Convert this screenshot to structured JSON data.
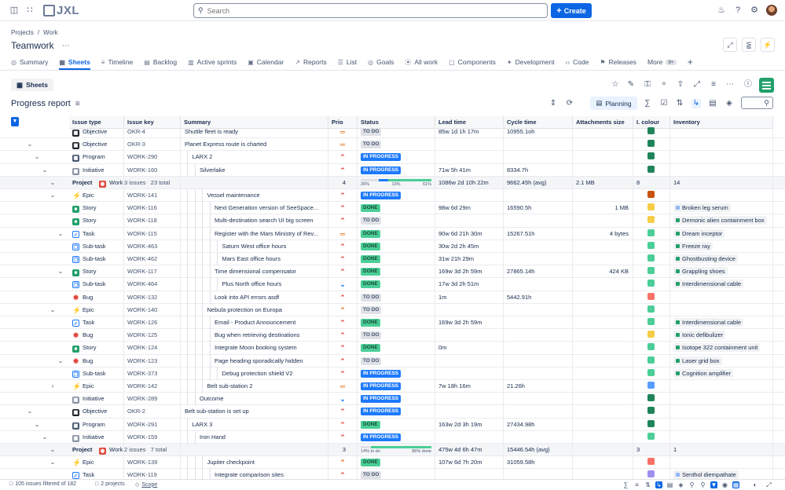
{
  "topbar": {
    "logo_text": "JXL",
    "search_placeholder": "Search",
    "create_label": "Create"
  },
  "breadcrumb": {
    "projects": "Projects",
    "sep": "/",
    "work": "Work"
  },
  "project_title": "Teamwork",
  "tabs": [
    {
      "label": "Summary",
      "icon": "globe-icon"
    },
    {
      "label": "Sheets",
      "icon": "sheet-icon"
    },
    {
      "label": "Timeline",
      "icon": "timeline-icon"
    },
    {
      "label": "Backlog",
      "icon": "backlog-icon"
    },
    {
      "label": "Active sprints",
      "icon": "sprint-icon"
    },
    {
      "label": "Calendar",
      "icon": "calendar-icon"
    },
    {
      "label": "Reports",
      "icon": "chart-icon"
    },
    {
      "label": "List",
      "icon": "list-icon"
    },
    {
      "label": "Goals",
      "icon": "goal-icon"
    },
    {
      "label": "All work",
      "icon": "allwork-icon"
    },
    {
      "label": "Components",
      "icon": "component-icon"
    },
    {
      "label": "Development",
      "icon": "bulb-icon"
    },
    {
      "label": "Code",
      "icon": "code-icon"
    },
    {
      "label": "Releases",
      "icon": "release-icon"
    },
    {
      "label": "More",
      "icon": "more-icon",
      "badge": "9+"
    }
  ],
  "sheets_label": "Sheets",
  "report_title": "Progress report",
  "planning_label": "Planning",
  "columns": [
    "Issue type",
    "Issue key",
    "Summary",
    "Prio",
    "Status",
    "Lead time",
    "Cycle time",
    "Attachments size",
    "I. colour",
    "Inventory"
  ],
  "rows": [
    {
      "kind": "issue",
      "gutter": "",
      "type": "Objective",
      "icon": "objective",
      "key": "OKR-4",
      "summary": "Shuttle fleet is ready",
      "indent": 0,
      "prio": "med",
      "status": "TO DO",
      "st": "todo",
      "lead": "85w 1d 1h 17m",
      "cycle": "10955.1oh",
      "att": "",
      "colour": "#1f845a",
      "inv": ""
    },
    {
      "kind": "issue",
      "gutter": "⌄",
      "type": "Objective",
      "icon": "objective",
      "key": "OKR-3",
      "summary": "Planet Express route is charted",
      "indent": 0,
      "prio": "med",
      "status": "TO DO",
      "st": "todo",
      "lead": "",
      "cycle": "",
      "att": "",
      "colour": "#1f845a",
      "inv": ""
    },
    {
      "kind": "issue",
      "gutter": "⌄",
      "type": "Program",
      "icon": "program",
      "key": "WORK-290",
      "summary": "LARX 2",
      "indent": 1,
      "prio": "high",
      "status": "IN PROGRESS",
      "st": "prog",
      "lead": "",
      "cycle": "",
      "att": "",
      "colour": "#1f845a",
      "inv": ""
    },
    {
      "kind": "issue",
      "gutter": "⌄",
      "type": "Initiative",
      "icon": "initiative",
      "key": "WORK-160",
      "summary": "Silverlake",
      "indent": 2,
      "prio": "high",
      "status": "IN PROGRESS",
      "st": "prog",
      "lead": "71w 5h 41m",
      "cycle": "8334.7h",
      "att": "",
      "colour": "#1f845a",
      "inv": ""
    },
    {
      "kind": "project",
      "gutter": "⌄",
      "label": "Project",
      "pname": "Work",
      "issues": "3 issues",
      "total": "23 total",
      "prio_count": "4",
      "todo_pct": "26%",
      "prog_pct": "13%",
      "done_pct": "61%",
      "todo_val": 26,
      "prog_val": 13,
      "done_val": 61,
      "lead": "1086w 2d 10h 22m",
      "cycle": "9662.45h (avg)",
      "att": "2.1 MB",
      "colour_count": "8",
      "inv_count": "14"
    },
    {
      "kind": "issue",
      "gutter": "⌄",
      "type": "Epic",
      "icon": "epic",
      "key": "WORK-141",
      "summary": "Vessel maintenance",
      "indent": 3,
      "prio": "high",
      "status": "IN PROGRESS",
      "st": "prog",
      "lead": "",
      "cycle": "",
      "att": "",
      "colour": "#c9520e",
      "inv": ""
    },
    {
      "kind": "issue",
      "gutter": "",
      "type": "Story",
      "icon": "story",
      "key": "WORK-116",
      "summary": "Next Generation version of SeeSpace...",
      "indent": 4,
      "prio": "high",
      "status": "DONE",
      "st": "done",
      "lead": "98w 6d 29m",
      "cycle": "16590.5h",
      "att": "1 MB",
      "colour": "#f5cd47",
      "inv": "Broken leg serum",
      "inv_dot": "#8fb8f6"
    },
    {
      "kind": "issue",
      "gutter": "",
      "type": "Story",
      "icon": "story",
      "key": "WORK-118",
      "summary": "Multi-destination search UI big screen",
      "indent": 4,
      "prio": "high",
      "status": "TO DO",
      "st": "todo",
      "lead": "",
      "cycle": "",
      "att": "",
      "colour": "#f5cd47",
      "inv": "Demonic alien containment box",
      "inv_dot": "#22a06b"
    },
    {
      "kind": "issue",
      "gutter": "⌄",
      "type": "Task",
      "icon": "task",
      "key": "WORK-115",
      "summary": "Register with the Mars Ministry of Rev...",
      "indent": 4,
      "prio": "med",
      "status": "DONE",
      "st": "done",
      "lead": "90w 6d 21h 30m",
      "cycle": "15267.51h",
      "att": "4 bytes",
      "colour": "#4bce97",
      "inv": "Dream inceptor",
      "inv_dot": "#22a06b"
    },
    {
      "kind": "issue",
      "gutter": "",
      "type": "Sub-task",
      "icon": "subtask",
      "key": "WORK-463",
      "summary": "Saturn West office hours",
      "indent": 5,
      "prio": "high",
      "status": "DONE",
      "st": "done",
      "lead": "30w 2d 2h 45m",
      "cycle": "",
      "att": "",
      "colour": "#4bce97",
      "inv": "Freeze ray",
      "inv_dot": "#22a06b"
    },
    {
      "kind": "issue",
      "gutter": "",
      "type": "Sub-task",
      "icon": "subtask",
      "key": "WORK-462",
      "summary": "Mars East office hours",
      "indent": 5,
      "prio": "high",
      "status": "DONE",
      "st": "done",
      "lead": "31w 21h 29m",
      "cycle": "",
      "att": "",
      "colour": "#4bce97",
      "inv": "Ghostbusting device",
      "inv_dot": "#22a06b"
    },
    {
      "kind": "issue",
      "gutter": "⌄",
      "type": "Story",
      "icon": "story",
      "key": "WORK-117",
      "summary": "Time dimensional compensator",
      "indent": 4,
      "prio": "high",
      "status": "DONE",
      "st": "done",
      "lead": "169w 3d 2h 59m",
      "cycle": "27865.14h",
      "att": "424 KB",
      "colour": "#4bce97",
      "inv": "Grappling shoes",
      "inv_dot": "#22a06b"
    },
    {
      "kind": "issue",
      "gutter": "",
      "type": "Sub-task",
      "icon": "subtask",
      "key": "WORK-464",
      "summary": "Plus North office hours",
      "indent": 5,
      "prio": "low",
      "status": "DONE",
      "st": "done",
      "lead": "17w 3d 2h 51m",
      "cycle": "",
      "att": "",
      "colour": "#4bce97",
      "inv": "Interdimensional cable",
      "inv_dot": "#22a06b"
    },
    {
      "kind": "issue",
      "gutter": "",
      "type": "Bug",
      "icon": "bug",
      "key": "WORK-132",
      "summary": "Look into API errors asdf",
      "indent": 4,
      "prio": "high",
      "status": "TO DO",
      "st": "todo",
      "lead": "1m",
      "cycle": "5442.91h",
      "att": "",
      "colour": "#f87168",
      "inv": ""
    },
    {
      "kind": "issue",
      "gutter": "⌄",
      "type": "Epic",
      "icon": "epic",
      "key": "WORK-140",
      "summary": "Nebula protection on Europa",
      "indent": 3,
      "prio": "medhigh",
      "status": "TO DO",
      "st": "todo",
      "lead": "",
      "cycle": "",
      "att": "",
      "colour": "#4bce97",
      "inv": ""
    },
    {
      "kind": "issue",
      "gutter": "",
      "type": "Task",
      "icon": "task",
      "key": "WORK-126",
      "summary": "Email - Product Announcement",
      "indent": 4,
      "prio": "high",
      "status": "DONE",
      "st": "done",
      "lead": "169w 3d 2h 59m",
      "cycle": "",
      "att": "",
      "colour": "#4bce97",
      "inv": "Interdimensional cable",
      "inv_dot": "#22a06b"
    },
    {
      "kind": "issue",
      "gutter": "",
      "type": "Bug",
      "icon": "bug",
      "key": "WORK-125",
      "summary": "Bug when retrieving destinations",
      "indent": 4,
      "prio": "high",
      "status": "TO DO",
      "st": "todo",
      "lead": "",
      "cycle": "",
      "att": "",
      "colour": "#f5cd47",
      "inv": "Ionic defibulizer",
      "inv_dot": "#22a06b"
    },
    {
      "kind": "issue",
      "gutter": "",
      "type": "Story",
      "icon": "story",
      "key": "WORK-124",
      "summary": "Integrate Moon booking system",
      "indent": 4,
      "prio": "high",
      "status": "DONE",
      "st": "done",
      "lead": "0m",
      "cycle": "",
      "att": "",
      "colour": "#4bce97",
      "inv": "Isotope 322 containment unit",
      "inv_dot": "#22a06b"
    },
    {
      "kind": "issue",
      "gutter": "⌄",
      "type": "Bug",
      "icon": "bug",
      "key": "WORK-123",
      "summary": "Page heading sporadically hidden",
      "indent": 4,
      "prio": "high",
      "status": "TO DO",
      "st": "todo",
      "lead": "",
      "cycle": "",
      "att": "",
      "colour": "#4bce97",
      "inv": "Laser grid box",
      "inv_dot": "#22a06b"
    },
    {
      "kind": "issue",
      "gutter": "",
      "type": "Sub-task",
      "icon": "subtask",
      "key": "WORK-373",
      "summary": "Debug protection shield V2",
      "indent": 5,
      "prio": "high",
      "status": "IN PROGRESS",
      "st": "prog",
      "lead": "",
      "cycle": "",
      "att": "",
      "colour": "#4bce97",
      "inv": "Cognition amplifier",
      "inv_dot": "#22a06b"
    },
    {
      "kind": "issue",
      "gutter": "›",
      "type": "Epic",
      "icon": "epic",
      "key": "WORK-142",
      "summary": "Belt sub-station 2",
      "indent": 3,
      "prio": "med",
      "status": "IN PROGRESS",
      "st": "prog",
      "lead": "7w 18h 16m",
      "cycle": "21.26h",
      "att": "",
      "colour": "#579dff",
      "inv": ""
    },
    {
      "kind": "issue",
      "gutter": "",
      "type": "Initiative",
      "icon": "initiative",
      "key": "WORK-289",
      "summary": "Outcome",
      "indent": 2,
      "prio": "low",
      "status": "IN PROGRESS",
      "st": "prog",
      "lead": "",
      "cycle": "",
      "att": "",
      "colour": "#1f845a",
      "inv": ""
    },
    {
      "kind": "issue",
      "gutter": "⌄",
      "type": "Objective",
      "icon": "objective",
      "key": "OKR-2",
      "summary": "Belt sub-station is set up",
      "indent": 0,
      "prio": "high",
      "status": "IN PROGRESS",
      "st": "prog",
      "lead": "",
      "cycle": "",
      "att": "",
      "colour": "#1f845a",
      "inv": ""
    },
    {
      "kind": "issue",
      "gutter": "⌄",
      "type": "Program",
      "icon": "program",
      "key": "WORK-291",
      "summary": "LARX 3",
      "indent": 1,
      "prio": "high",
      "status": "DONE",
      "st": "done",
      "lead": "163w 2d 3h 19m",
      "cycle": "27434.98h",
      "att": "",
      "colour": "#1f845a",
      "inv": ""
    },
    {
      "kind": "issue",
      "gutter": "⌄",
      "type": "Initiative",
      "icon": "initiative",
      "key": "WORK-159",
      "summary": "Iron Hand",
      "indent": 2,
      "prio": "high",
      "status": "IN PROGRESS",
      "st": "prog",
      "lead": "",
      "cycle": "",
      "att": "",
      "colour": "#4bce97",
      "inv": ""
    },
    {
      "kind": "project",
      "gutter": "⌄",
      "label": "Project",
      "pname": "Work",
      "issues": "2 issues",
      "total": "7 total",
      "prio_count": "3",
      "todo_pct": "14% to do",
      "prog_pct": "",
      "done_pct": "86% done",
      "todo_val": 14,
      "prog_val": 0,
      "done_val": 86,
      "lead": "475w 4d 6h 47m",
      "cycle": "15446.54h (avg)",
      "att": "",
      "colour_count": "3",
      "inv_count": "1"
    },
    {
      "kind": "issue",
      "gutter": "⌄",
      "type": "Epic",
      "icon": "epic",
      "key": "WORK-139",
      "summary": "Jupiter checkpoint",
      "indent": 3,
      "prio": "medhigh",
      "status": "DONE",
      "st": "done",
      "lead": "107w 6d 7h 20m",
      "cycle": "31059.58h",
      "att": "",
      "colour": "#f87168",
      "inv": ""
    },
    {
      "kind": "issue",
      "gutter": "",
      "type": "Task",
      "icon": "task",
      "key": "WORK-119",
      "summary": "Integrate comparison sites",
      "indent": 4,
      "prio": "high",
      "status": "TO DO",
      "st": "todo",
      "lead": "",
      "cycle": "",
      "att": "",
      "colour": "#9f8fef",
      "inv": "Senthol diempathate",
      "inv_dot": "#8fb8f6"
    }
  ],
  "footer": {
    "issues_text": "105 issues filtered of 182",
    "projects_text": "2 projects",
    "scope_text": "Scope"
  },
  "colors": {
    "accent": "#0c66e4",
    "done": "#4bce97",
    "progress": "#1d7afc",
    "todo": "#dfe1e6"
  }
}
